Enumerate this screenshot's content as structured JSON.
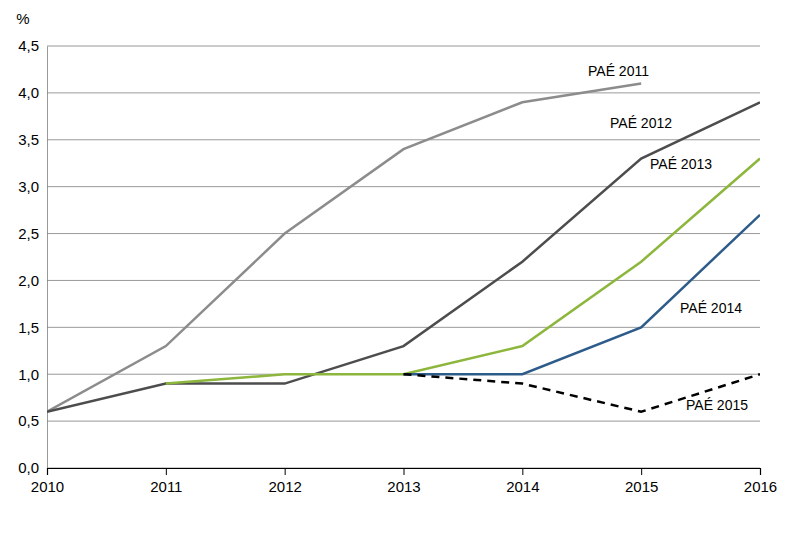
{
  "chart_data": {
    "type": "line",
    "y_label": "%",
    "x": [
      2010,
      2011,
      2012,
      2013,
      2014,
      2015,
      2016
    ],
    "xlim": [
      2010,
      2016
    ],
    "xticks": [
      2010,
      2011,
      2012,
      2013,
      2014,
      2015,
      2016
    ],
    "ylim": [
      0,
      4.5
    ],
    "yticks": [
      {
        "value": 0,
        "label": "0,0"
      },
      {
        "value": 0.5,
        "label": "0,5"
      },
      {
        "value": 1,
        "label": "1,0"
      },
      {
        "value": 1.5,
        "label": "1,5"
      },
      {
        "value": 2,
        "label": "2,0"
      },
      {
        "value": 2.5,
        "label": "2,5"
      },
      {
        "value": 3,
        "label": "3,0"
      },
      {
        "value": 3.5,
        "label": "3,5"
      },
      {
        "value": 4,
        "label": "4,0"
      },
      {
        "value": 4.5,
        "label": "4,5"
      }
    ],
    "grid": true,
    "series": [
      {
        "name": "PAÉ 2011",
        "color": "#8c8c8c",
        "values": [
          0.6,
          1.3,
          2.5,
          3.4,
          3.9,
          4.1,
          null
        ]
      },
      {
        "name": "PAÉ 2012",
        "color": "#4d4d4d",
        "values": [
          0.6,
          0.9,
          0.9,
          1.3,
          2.2,
          3.3,
          3.9
        ]
      },
      {
        "name": "PAÉ 2013",
        "color": "#8db63c",
        "values": [
          null,
          0.9,
          1.0,
          1.0,
          1.3,
          2.2,
          3.3
        ]
      },
      {
        "name": "PAÉ 2014",
        "color": "#2e5c8a",
        "values": [
          null,
          null,
          null,
          1.0,
          1.0,
          1.5,
          2.7
        ]
      },
      {
        "name": "PAÉ 2015",
        "color": "#000000",
        "line_style": "dashed",
        "values": [
          null,
          null,
          null,
          1.0,
          0.9,
          0.6,
          1.0
        ]
      }
    ]
  }
}
